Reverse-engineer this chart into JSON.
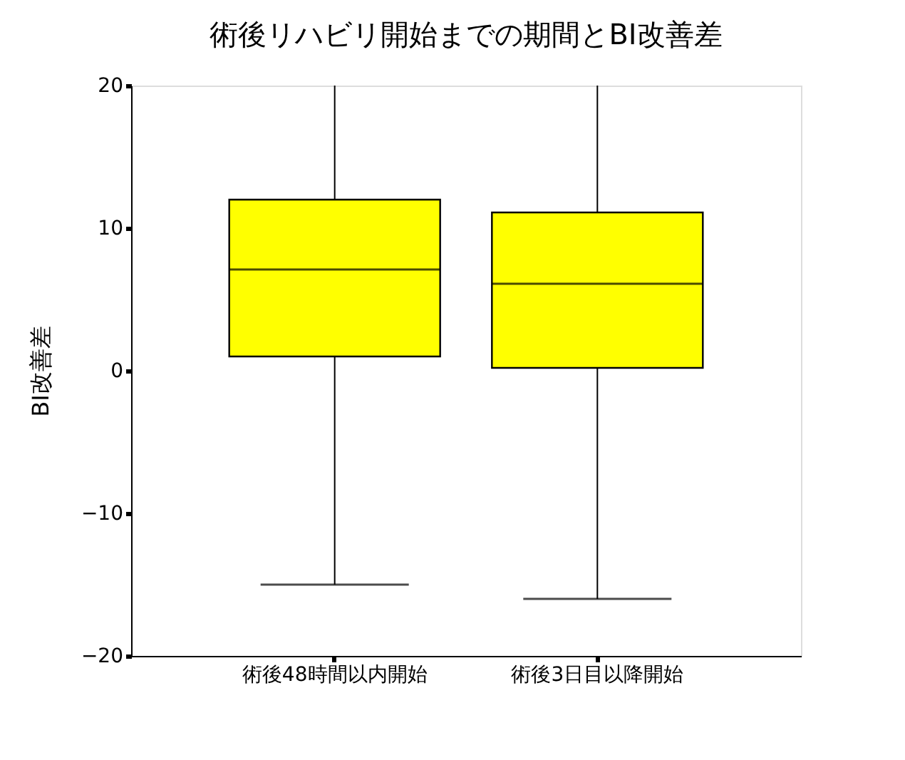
{
  "chart_data": {
    "type": "box",
    "title": "術後リハビリ開始までの期間とBI改善差",
    "ylabel": "BI改善差",
    "categories": [
      "術後48時間以内開始",
      "術後3日目以降開始"
    ],
    "boxes": [
      {
        "low": -15,
        "q1": 1,
        "median": 7.1,
        "q3": 12,
        "high": 20
      },
      {
        "low": -16,
        "q1": 0.2,
        "median": 6.1,
        "q3": 11.1,
        "high": 20
      }
    ],
    "color": "#ffff00",
    "ylim": [
      -20,
      20
    ],
    "yticks": [
      -20,
      -10,
      0,
      10,
      20
    ],
    "grid": false
  }
}
